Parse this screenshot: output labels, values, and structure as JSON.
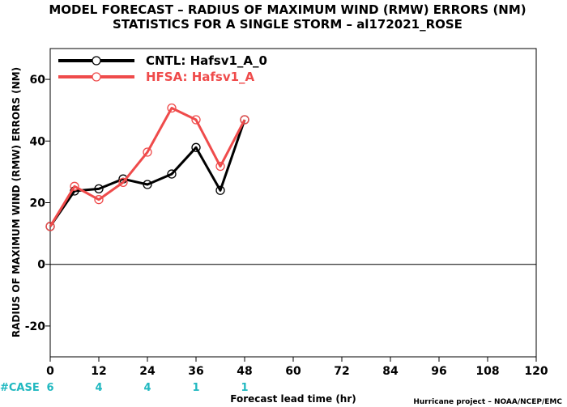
{
  "chart_data": {
    "type": "line",
    "title": "MODEL FORECAST – RADIUS OF MAXIMUM WIND (RMW) ERRORS (NM)",
    "subtitle": "STATISTICS FOR A SINGLE STORM – al172021_ROSE",
    "xlabel": "Forecast lead time (hr)",
    "ylabel": "RADIUS OF MAXIMUM WIND (RMW) ERRORS (NM)",
    "xlim": [
      0,
      120
    ],
    "ylim": [
      -30,
      70
    ],
    "x_ticks": [
      0,
      12,
      24,
      36,
      48,
      60,
      72,
      84,
      96,
      108,
      120
    ],
    "y_ticks": [
      -20,
      0,
      20,
      40,
      60
    ],
    "grid": false,
    "legend_position": "top-left",
    "series": [
      {
        "name": "CNTL: Hafsv1_A_0",
        "color": "#000000",
        "x": [
          0,
          6,
          12,
          18,
          24,
          30,
          36,
          42,
          48
        ],
        "y": [
          12.3,
          23.8,
          24.5,
          27.7,
          25.9,
          29.3,
          37.9,
          24.0,
          46.9
        ]
      },
      {
        "name": "HFSA: Hafsv1_A",
        "color": "#ef4b4b",
        "x": [
          0,
          6,
          12,
          18,
          24,
          30,
          36,
          42,
          48
        ],
        "y": [
          12.3,
          25.3,
          21.0,
          26.6,
          36.4,
          50.7,
          46.9,
          31.8,
          46.9
        ]
      }
    ],
    "case_label": "#CASE",
    "case_counts": [
      {
        "x": 0,
        "label": "6"
      },
      {
        "x": 12,
        "label": "4"
      },
      {
        "x": 24,
        "label": "4"
      },
      {
        "x": 36,
        "label": "1"
      },
      {
        "x": 48,
        "label": "1"
      }
    ],
    "credit": "Hurricane project – NOAA/NCEP/EMC"
  }
}
